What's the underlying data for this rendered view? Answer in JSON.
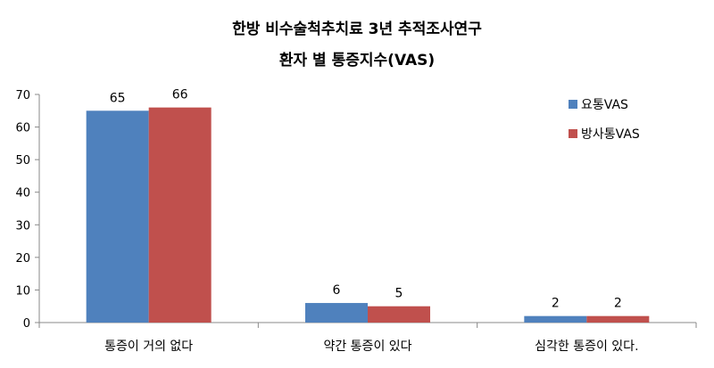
{
  "chart_data": {
    "type": "bar",
    "title": "한방 비수술척추치료 3년 추적조사연구",
    "subtitle": "환자 별 통증지수(VAS)",
    "xlabel": "",
    "ylabel": "",
    "categories": [
      "통증이 거의 없다",
      "약간 통증이 있다",
      "심각한 통증이 있다."
    ],
    "series": [
      {
        "name": "요통VAS",
        "values": [
          65,
          6,
          2
        ],
        "color": "#4F81BD"
      },
      {
        "name": "방사통VAS",
        "values": [
          66,
          5,
          2
        ],
        "color": "#C0504D"
      }
    ],
    "ylim": [
      0,
      70
    ],
    "yticks": [
      0,
      10,
      20,
      30,
      40,
      50,
      60,
      70
    ],
    "grid": false,
    "legend": "top-right"
  }
}
